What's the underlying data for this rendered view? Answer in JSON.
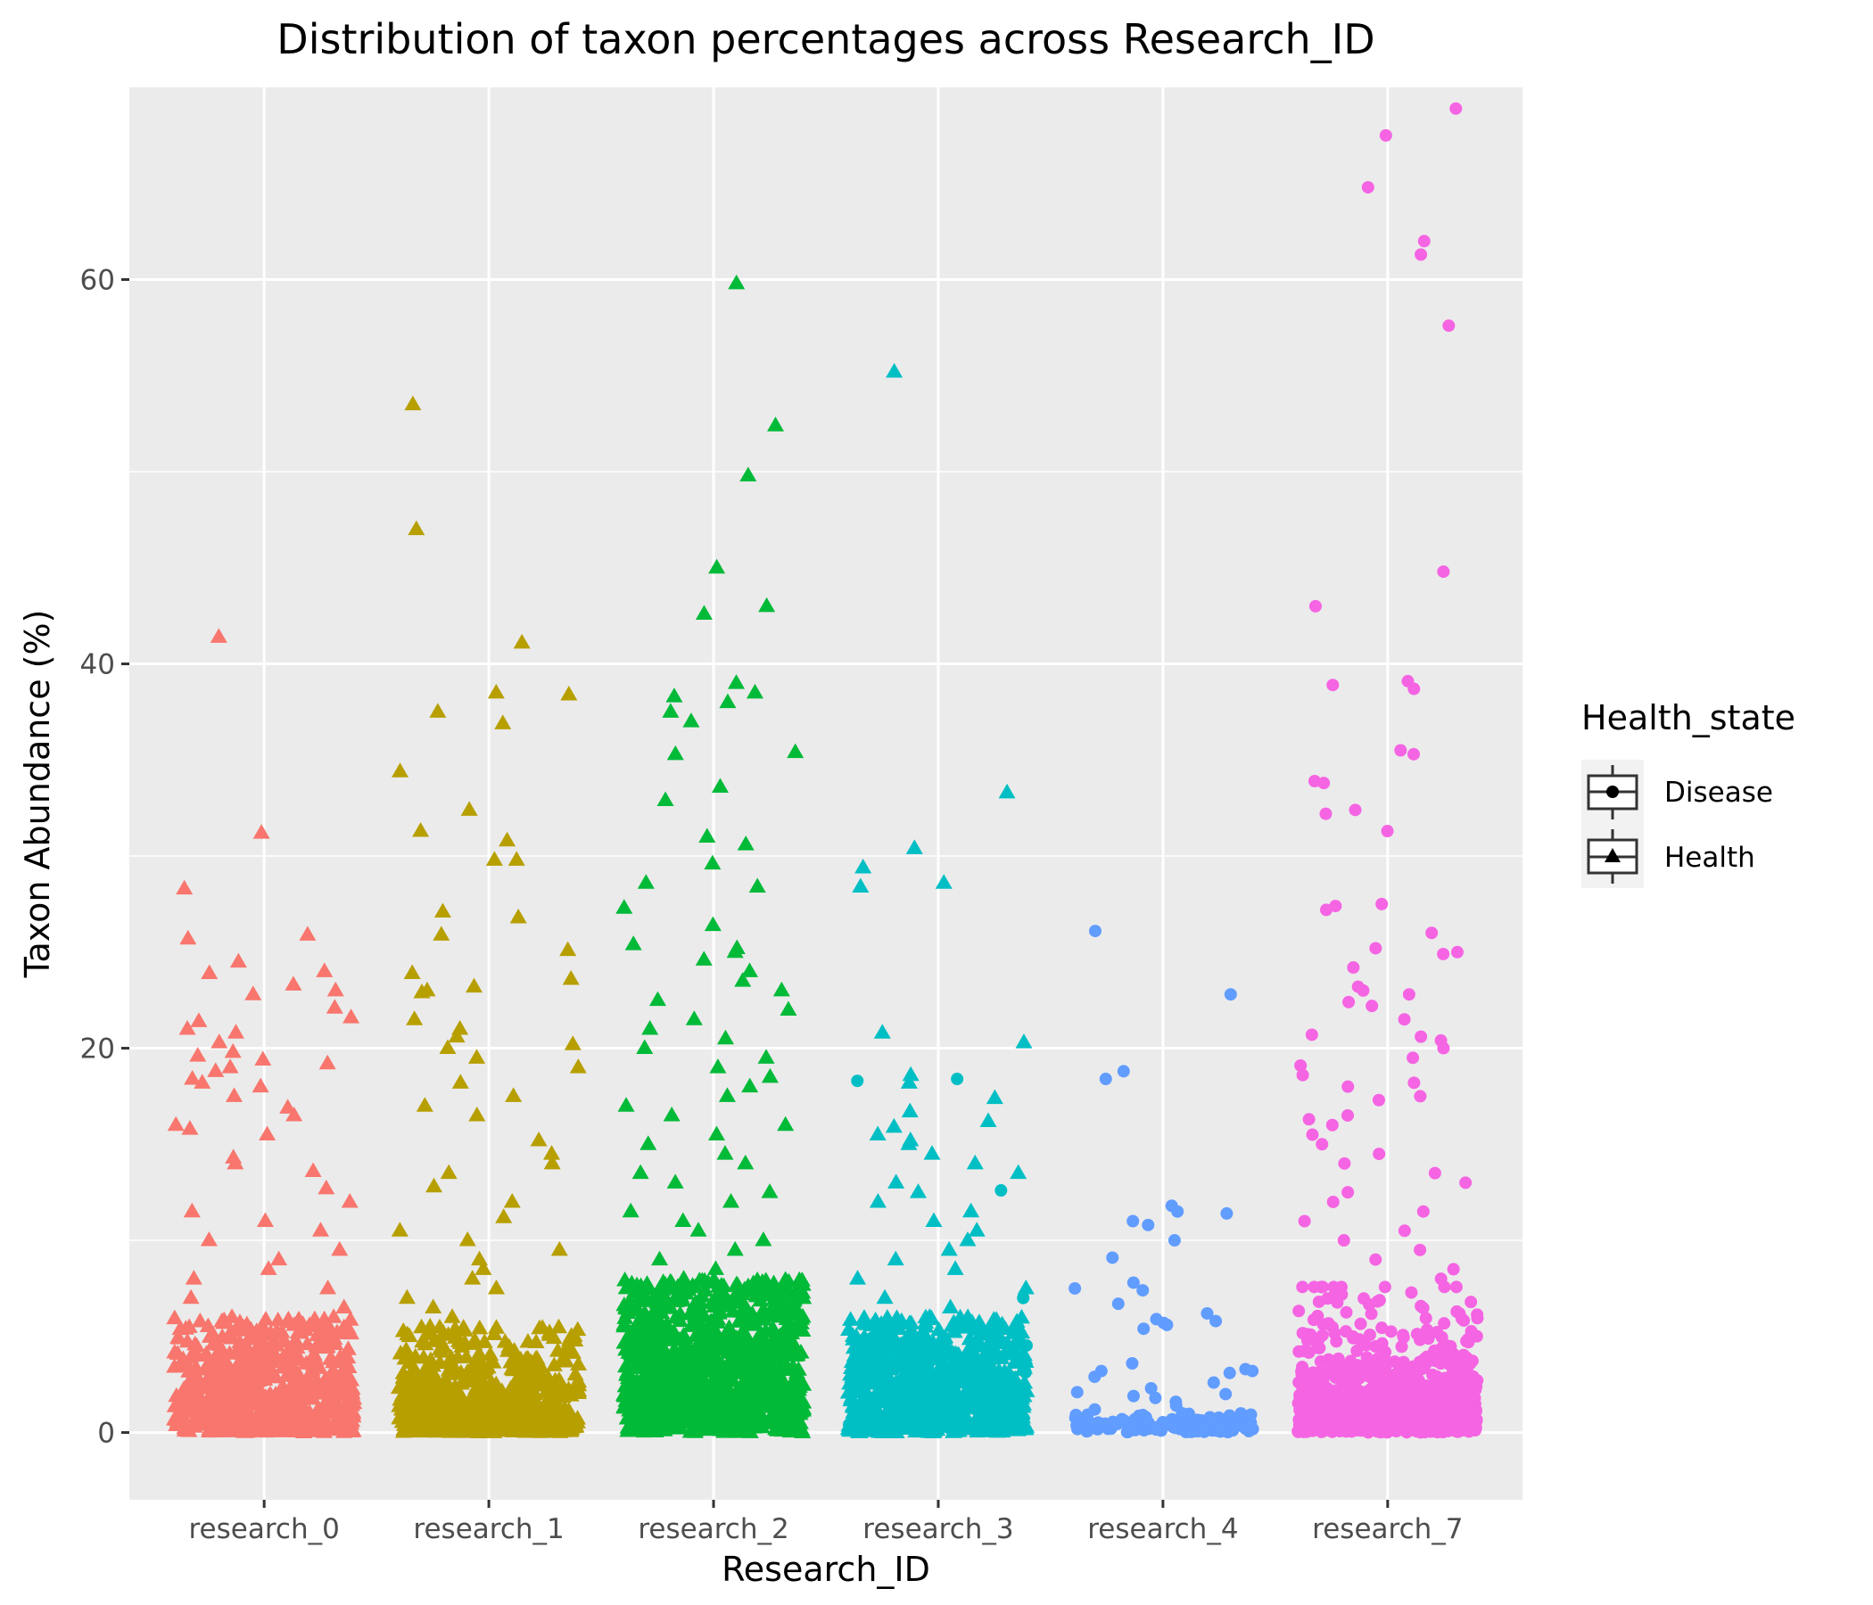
{
  "chart_data": {
    "type": "scatter",
    "title": "Distribution of taxon percentages across Research_ID",
    "xlabel": "Research_ID",
    "ylabel": "Taxon Abundance (%)",
    "categories": [
      "research_0",
      "research_1",
      "research_2",
      "research_3",
      "research_4",
      "research_7"
    ],
    "ylim": [
      -3.5,
      70
    ],
    "yticks": [
      0,
      20,
      40,
      60
    ],
    "grid": true,
    "jitter": true,
    "legend": {
      "title": "Health_state",
      "position": "right",
      "entries": [
        {
          "label": "Disease",
          "shape": "circle"
        },
        {
          "label": "Health",
          "shape": "triangle"
        }
      ]
    },
    "series": [
      {
        "category": "research_0",
        "health_state": "Health",
        "shape": "triangle",
        "color": "#F8766D",
        "n_points": 700,
        "median_approx": 1.5,
        "upper_quartile_approx": 5,
        "notable_values": [
          41.4,
          31.2,
          28.3,
          25.9,
          25.7,
          24.5,
          24.0,
          23.9,
          23.3,
          23.0,
          22.8,
          22.1,
          21.6,
          21.4,
          21.0,
          20.8,
          20.3,
          19.8,
          19.6,
          19.4,
          19.2,
          19.0,
          18.8,
          18.4,
          18.2,
          18.0,
          17.5,
          16.9,
          16.5,
          16.0,
          15.8,
          15.5,
          14.3,
          14.0,
          13.6,
          12.7,
          12.0,
          11.5,
          11.0,
          10.5,
          10.0,
          9.5,
          9.0,
          8.5,
          8.0,
          7.5,
          7.0,
          6.5,
          6.0
        ]
      },
      {
        "category": "research_1",
        "health_state": "Health",
        "shape": "triangle",
        "color": "#B79F00",
        "n_points": 700,
        "median_approx": 0.8,
        "upper_quartile_approx": 3,
        "notable_values": [
          53.5,
          47.0,
          41.1,
          38.5,
          38.4,
          37.5,
          36.9,
          34.4,
          32.4,
          31.3,
          30.8,
          29.8,
          29.8,
          27.1,
          26.8,
          25.9,
          25.1,
          23.9,
          23.6,
          23.2,
          23.0,
          22.9,
          21.5,
          21.0,
          20.6,
          20.2,
          20.0,
          19.5,
          19.0,
          18.2,
          17.5,
          17.0,
          16.5,
          15.2,
          14.5,
          14.0,
          13.5,
          12.8,
          12.0,
          11.2,
          10.5,
          10.0,
          9.5,
          9.0,
          8.5,
          8.0,
          7.5,
          7.0,
          6.5,
          6.0,
          5.5
        ]
      },
      {
        "category": "research_2",
        "health_state": "Health",
        "shape": "triangle",
        "color": "#00BA38",
        "n_points": 1100,
        "median_approx": 2.5,
        "upper_quartile_approx": 8,
        "notable_values": [
          59.8,
          52.4,
          49.8,
          45.0,
          43.0,
          42.6,
          39.0,
          38.5,
          38.3,
          38.0,
          37.5,
          37.0,
          35.4,
          35.3,
          33.6,
          32.9,
          31.0,
          30.6,
          29.6,
          28.6,
          28.4,
          27.3,
          26.4,
          25.4,
          25.2,
          25.0,
          24.6,
          24.0,
          23.5,
          23.0,
          22.5,
          22.0,
          21.5,
          21.0,
          20.5,
          20.0,
          19.5,
          19.0,
          18.5,
          18.0,
          17.5,
          17.0,
          16.5,
          16.0,
          15.5,
          15.0,
          14.5,
          14.0,
          13.5,
          13.0,
          12.5,
          12.0,
          11.5,
          11.0,
          10.5,
          10.0,
          9.5,
          9.0,
          8.5,
          8.0
        ]
      },
      {
        "category": "research_3",
        "health_state": "Health",
        "shape": "triangle",
        "color": "#00BFC4",
        "n_points": 800,
        "median_approx": 1.5,
        "upper_quartile_approx": 5,
        "notable_values": [
          55.2,
          33.3,
          30.4,
          29.4,
          28.6,
          28.4,
          20.8,
          20.3,
          18.6,
          18.2,
          17.4,
          16.7,
          16.2,
          15.9,
          15.5,
          15.2,
          15.0,
          14.5,
          14.0,
          13.5,
          13.0,
          12.5,
          12.0,
          11.5,
          11.0,
          10.5,
          10.0,
          9.5,
          9.0,
          8.5,
          8.0,
          7.5,
          7.0,
          6.5,
          6.0
        ]
      },
      {
        "category": "research_3",
        "health_state": "Disease",
        "shape": "circle",
        "color": "#00BFC4",
        "n_points": 60,
        "median_approx": 1.0,
        "upper_quartile_approx": 3,
        "notable_values": [
          18.4,
          18.3,
          12.6,
          7.0,
          5.0
        ]
      },
      {
        "category": "research_4",
        "health_state": "Disease",
        "shape": "circle",
        "color": "#619CFF",
        "n_points": 150,
        "median_approx": 0.2,
        "upper_quartile_approx": 0.8,
        "notable_values": [
          26.1,
          22.8,
          18.8,
          18.4,
          11.8,
          11.5,
          11.4,
          11.0,
          10.8,
          10.0,
          9.1,
          7.8,
          7.5,
          7.4,
          6.7,
          6.2,
          5.9,
          5.8,
          5.7,
          5.6,
          5.4,
          3.6,
          3.3,
          3.2,
          3.2,
          3.1,
          2.9,
          2.6,
          2.3,
          2.1,
          2.0,
          1.9,
          1.8,
          1.6,
          1.4,
          1.2,
          1.0
        ]
      },
      {
        "category": "research_7",
        "health_state": "Disease",
        "shape": "circle",
        "color": "#F564E3",
        "n_points": 1000,
        "median_approx": 0.8,
        "upper_quartile_approx": 2.5,
        "notable_values": [
          68.9,
          67.5,
          64.8,
          62.0,
          61.3,
          57.6,
          44.8,
          43.0,
          39.1,
          38.9,
          38.7,
          35.5,
          35.3,
          33.9,
          33.8,
          32.4,
          32.2,
          31.3,
          27.5,
          27.4,
          27.2,
          26.0,
          25.2,
          25.0,
          24.9,
          24.2,
          23.2,
          23.0,
          22.8,
          22.4,
          22.2,
          21.5,
          20.7,
          20.6,
          20.4,
          20.0,
          19.5,
          19.1,
          18.6,
          18.2,
          18.0,
          17.5,
          17.3,
          16.5,
          16.3,
          16.0,
          15.5,
          15.0,
          14.5,
          14.0,
          13.5,
          13.0,
          12.5,
          12.0,
          11.5,
          11.0,
          10.5,
          10.0,
          9.5,
          9.0,
          8.5,
          8.0
        ]
      }
    ]
  }
}
